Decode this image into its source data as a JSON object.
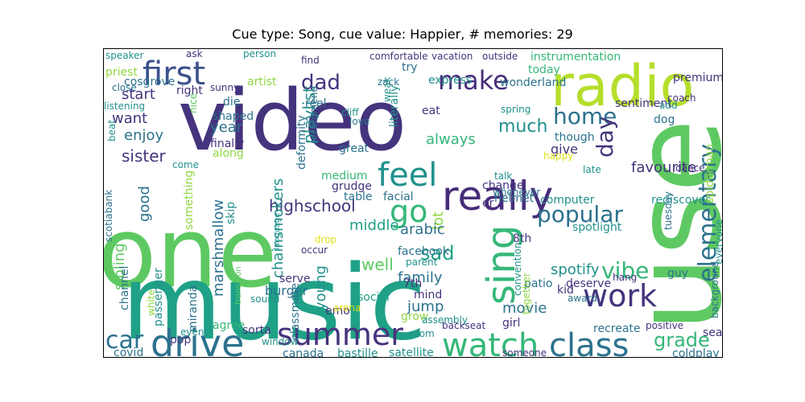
{
  "title": "Cue type: Song, cue value: Happier, # memories: 29",
  "palette": {
    "dark_purple": "#45337d",
    "purple": "#472c7a",
    "indigo": "#3b518b",
    "blue": "#31688e",
    "teal_blue": "#2c728e",
    "teal": "#21918c",
    "green_teal": "#1fa187",
    "green": "#35b779",
    "light_green": "#5ec962",
    "lime": "#90d743",
    "yellow_green": "#b5de2b",
    "yellow": "#dde318"
  },
  "words": [
    {
      "text": "video",
      "color": "dark_purple"
    },
    {
      "text": "one",
      "color": "light_green"
    },
    {
      "text": "music",
      "color": "green_teal"
    },
    {
      "text": "use",
      "color": "light_green"
    },
    {
      "text": "radio",
      "color": "yellow_green"
    },
    {
      "text": "first",
      "color": "indigo"
    },
    {
      "text": "make",
      "color": "purple"
    },
    {
      "text": "really",
      "color": "purple"
    },
    {
      "text": "drive",
      "color": "teal_blue"
    },
    {
      "text": "summer",
      "color": "dark_purple"
    },
    {
      "text": "watch",
      "color": "green"
    },
    {
      "text": "class",
      "color": "teal_blue"
    },
    {
      "text": "feel",
      "color": "teal"
    },
    {
      "text": "go",
      "color": "green"
    },
    {
      "text": "sing",
      "color": "green"
    },
    {
      "text": "work",
      "color": "dark_purple"
    },
    {
      "text": "home",
      "color": "teal_blue"
    },
    {
      "text": "popular",
      "color": "teal_blue"
    },
    {
      "text": "car",
      "color": "teal_blue"
    },
    {
      "text": "dad",
      "color": "dark_purple"
    },
    {
      "text": "day",
      "color": "dark_purple"
    },
    {
      "text": "elementary",
      "color": "teal_blue"
    },
    {
      "text": "vibe",
      "color": "green"
    },
    {
      "text": "grade",
      "color": "green"
    },
    {
      "text": "much",
      "color": "teal"
    },
    {
      "text": "always",
      "color": "green"
    },
    {
      "text": "highschool",
      "color": "dark_purple"
    },
    {
      "text": "marshmallow",
      "color": "teal_blue"
    },
    {
      "text": "chainsmokers",
      "color": "teal"
    },
    {
      "text": "sister",
      "color": "dark_purple"
    },
    {
      "text": "start",
      "color": "dark_purple"
    },
    {
      "text": "want",
      "color": "dark_purple"
    },
    {
      "text": "enjoy",
      "color": "teal_blue"
    },
    {
      "text": "year",
      "color": "teal_blue"
    },
    {
      "text": "playlist",
      "color": "teal"
    },
    {
      "text": "good",
      "color": "teal_blue"
    },
    {
      "text": "middle",
      "color": "green_teal"
    },
    {
      "text": "lot",
      "color": "lime"
    },
    {
      "text": "arabic",
      "color": "teal_blue"
    },
    {
      "text": "sad",
      "color": "green_teal"
    },
    {
      "text": "well",
      "color": "light_green"
    },
    {
      "text": "family",
      "color": "teal_blue"
    },
    {
      "text": "young",
      "color": "teal"
    },
    {
      "text": "jump",
      "color": "teal_blue"
    },
    {
      "text": "movie",
      "color": "teal_blue"
    },
    {
      "text": "spotify",
      "color": "teal"
    },
    {
      "text": "favourite",
      "color": "dark_purple"
    },
    {
      "text": "give",
      "color": "dark_purple"
    },
    {
      "text": "sibling",
      "color": "light_green"
    },
    {
      "text": "coldplay",
      "color": "teal_blue"
    },
    {
      "text": "satellite",
      "color": "teal"
    },
    {
      "text": "bastille",
      "color": "teal"
    },
    {
      "text": "canada",
      "color": "teal_blue"
    },
    {
      "text": "burger",
      "color": "teal_blue"
    },
    {
      "text": "serve",
      "color": "dark_purple"
    },
    {
      "text": "social",
      "color": "green_teal"
    },
    {
      "text": "mind",
      "color": "dark_purple"
    },
    {
      "text": "7th",
      "color": "dark_purple"
    },
    {
      "text": "8th",
      "color": "dark_purple"
    },
    {
      "text": "facebook",
      "color": "teal_blue"
    },
    {
      "text": "spotlight",
      "color": "teal"
    },
    {
      "text": "rediscover",
      "color": "teal"
    },
    {
      "text": "computer",
      "color": "teal"
    },
    {
      "text": "helmet",
      "color": "teal_blue"
    },
    {
      "text": "recreate",
      "color": "teal_blue"
    },
    {
      "text": "patio",
      "color": "teal_blue"
    },
    {
      "text": "kid",
      "color": "dark_purple"
    },
    {
      "text": "deserve",
      "color": "dark_purple"
    },
    {
      "text": "seat",
      "color": "dark_purple"
    },
    {
      "text": "guy",
      "color": "teal_blue"
    },
    {
      "text": "sorta",
      "color": "dark_purple"
    },
    {
      "text": "agree",
      "color": "green"
    },
    {
      "text": "grow",
      "color": "lime"
    },
    {
      "text": "girl",
      "color": "dark_purple"
    },
    {
      "text": "covid",
      "color": "teal_blue"
    },
    {
      "text": "emo",
      "color": "dark_purple"
    },
    {
      "text": "cosgrove",
      "color": "teal_blue"
    },
    {
      "text": "reel",
      "color": "teal_blue"
    },
    {
      "text": "try",
      "color": "teal_blue"
    },
    {
      "text": "express",
      "color": "teal"
    },
    {
      "text": "wonderland",
      "color": "teal_blue"
    },
    {
      "text": "today",
      "color": "green"
    },
    {
      "text": "instrumentation",
      "color": "green"
    },
    {
      "text": "premium",
      "color": "dark_purple"
    },
    {
      "text": "find",
      "color": "dark_purple"
    },
    {
      "text": "right",
      "color": "dark_purple"
    },
    {
      "text": "artist",
      "color": "lime"
    },
    {
      "text": "eat",
      "color": "dark_purple"
    },
    {
      "text": "sentiment",
      "color": "dark_purple"
    },
    {
      "text": "dog",
      "color": "teal_blue"
    },
    {
      "text": "shaped",
      "color": "teal_blue"
    },
    {
      "text": "die",
      "color": "teal_blue"
    },
    {
      "text": "finally",
      "color": "dark_purple"
    },
    {
      "text": "along",
      "color": "lime"
    },
    {
      "text": "great",
      "color": "teal_blue"
    },
    {
      "text": "though",
      "color": "teal_blue"
    },
    {
      "text": "medium",
      "color": "green"
    },
    {
      "text": "grudge",
      "color": "dark_purple"
    },
    {
      "text": "table",
      "color": "teal_blue"
    },
    {
      "text": "facial",
      "color": "teal_blue"
    },
    {
      "text": "change",
      "color": "dark_purple"
    },
    {
      "text": "er",
      "color": "dark_purple"
    },
    {
      "text": "recommend",
      "color": "teal_blue"
    },
    {
      "text": "literally",
      "color": "teal"
    },
    {
      "text": "deformity",
      "color": "teal_blue"
    },
    {
      "text": "classmate",
      "color": "teal_blue"
    },
    {
      "text": "channel",
      "color": "teal_blue"
    },
    {
      "text": "passenger",
      "color": "teal"
    },
    {
      "text": "miranda",
      "color": "teal_blue"
    },
    {
      "text": "pop",
      "color": "dark_purple"
    },
    {
      "text": "white",
      "color": "lime"
    },
    {
      "text": "something",
      "color": "lime"
    },
    {
      "text": "skip",
      "color": "teal"
    },
    {
      "text": "together",
      "color": "lime"
    },
    {
      "text": "convention",
      "color": "teal"
    },
    {
      "text": "spiderman",
      "color": "lime"
    },
    {
      "text": "everyone",
      "color": "teal"
    },
    {
      "text": "background",
      "color": "teal_blue"
    },
    {
      "text": "tuesday",
      "color": "teal_blue"
    },
    {
      "text": "hang",
      "color": "dark_purple"
    },
    {
      "text": "award",
      "color": "teal_blue"
    },
    {
      "text": "positive",
      "color": "dark_purple"
    },
    {
      "text": "someone",
      "color": "dark_purple"
    },
    {
      "text": "backseat",
      "color": "dark_purple"
    },
    {
      "text": "mom",
      "color": "teal"
    },
    {
      "text": "window",
      "color": "teal"
    },
    {
      "text": "event",
      "color": "teal"
    },
    {
      "text": "sound",
      "color": "teal"
    },
    {
      "text": "transition",
      "color": "light_green"
    },
    {
      "text": "language",
      "color": "teal"
    },
    {
      "text": "drop",
      "color": "yellow"
    },
    {
      "text": "arena",
      "color": "yellow"
    },
    {
      "text": "occur",
      "color": "dark_purple"
    },
    {
      "text": "parent",
      "color": "teal"
    },
    {
      "text": "assembly",
      "color": "teal"
    },
    {
      "text": "whenever",
      "color": "teal_blue"
    },
    {
      "text": "talk",
      "color": "teal"
    },
    {
      "text": "happy",
      "color": "yellow"
    },
    {
      "text": "late",
      "color": "teal"
    },
    {
      "text": "dance",
      "color": "dark_purple"
    },
    {
      "text": "add",
      "color": "teal"
    },
    {
      "text": "coach",
      "color": "dark_purple"
    },
    {
      "text": "spring",
      "color": "teal"
    },
    {
      "text": "cliff",
      "color": "teal"
    },
    {
      "text": "love",
      "color": "teal_blue"
    },
    {
      "text": "zack",
      "color": "teal_blue"
    },
    {
      "text": "weak",
      "color": "teal"
    },
    {
      "text": "vacation",
      "color": "dark_purple"
    },
    {
      "text": "outside",
      "color": "dark_purple"
    },
    {
      "text": "comfortable",
      "color": "dark_purple"
    },
    {
      "text": "person",
      "color": "teal"
    },
    {
      "text": "ask",
      "color": "dark_purple"
    },
    {
      "text": "speaker",
      "color": "teal"
    },
    {
      "text": "priest",
      "color": "lime"
    },
    {
      "text": "close",
      "color": "teal_blue"
    },
    {
      "text": "listening",
      "color": "teal"
    },
    {
      "text": "sunny",
      "color": "dark_purple"
    },
    {
      "text": "nice",
      "color": "light_green"
    },
    {
      "text": "beat",
      "color": "teal"
    },
    {
      "text": "come",
      "color": "teal"
    },
    {
      "text": "scotiabank",
      "color": "teal_blue"
    }
  ]
}
